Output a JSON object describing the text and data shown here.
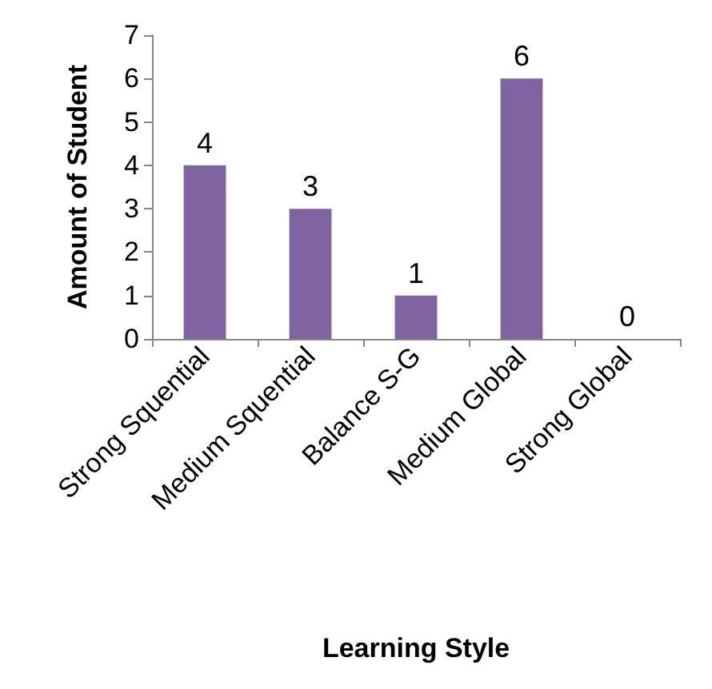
{
  "chart_data": {
    "type": "bar",
    "xlabel": "Learning Style",
    "ylabel": "Amount of Student",
    "categories": [
      "Strong Squential",
      "Medium Squential",
      "Balance S-G",
      "Medium Global",
      "Strong Global"
    ],
    "values": [
      4,
      3,
      1,
      6,
      0
    ],
    "color": "#8064a2",
    "ylim": [
      0,
      7
    ],
    "yticks": [
      0,
      1,
      2,
      3,
      4,
      5,
      6,
      7
    ],
    "grid": false,
    "data_labels": true
  }
}
